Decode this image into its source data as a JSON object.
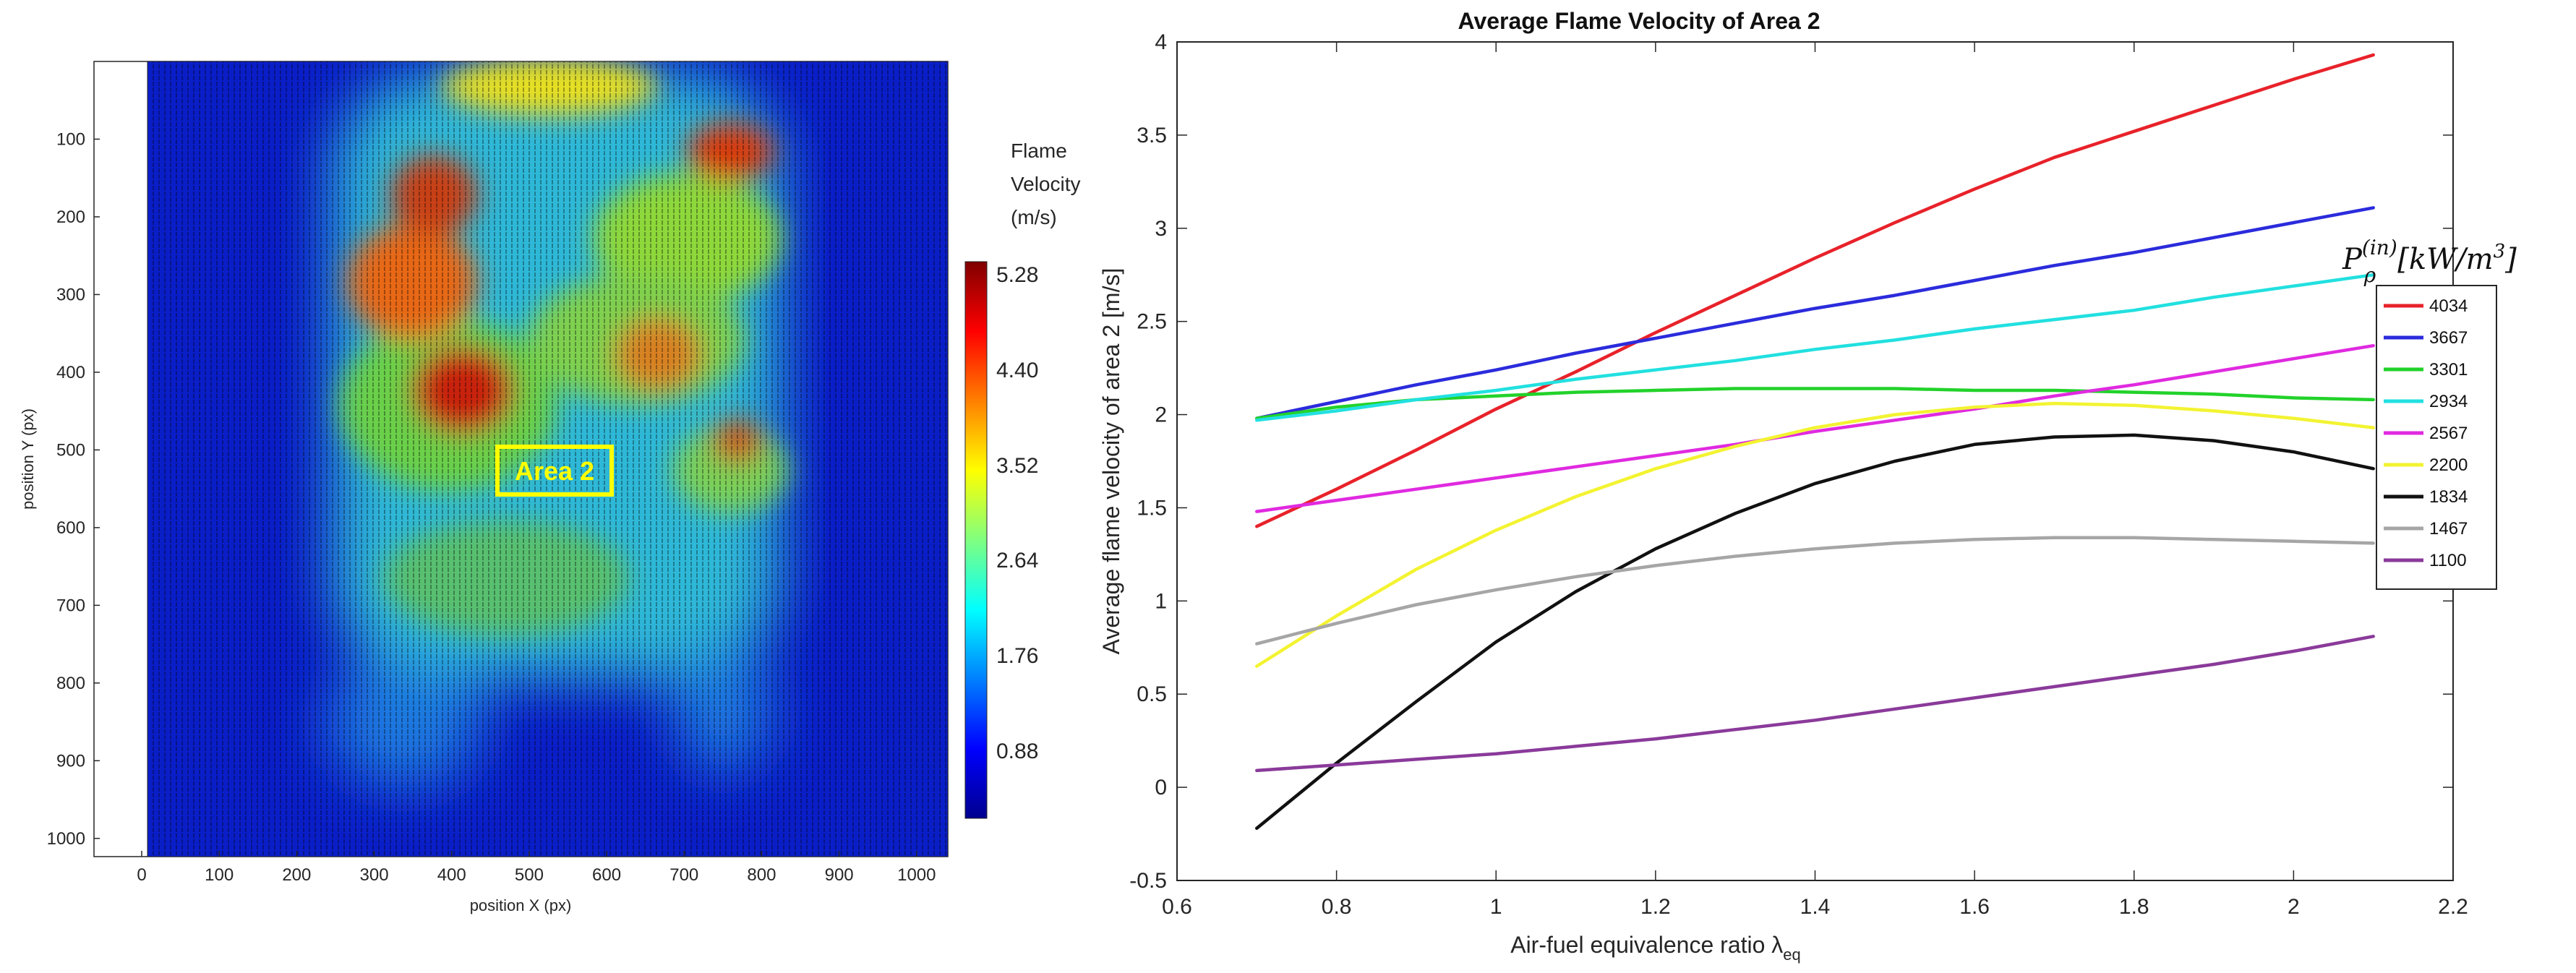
{
  "left_plot": {
    "xlabel": "position X (px)",
    "ylabel": "position Y (px)",
    "xticks": [
      "0",
      "100",
      "200",
      "300",
      "400",
      "500",
      "600",
      "700",
      "800",
      "900",
      "1000"
    ],
    "yticks": [
      "100",
      "200",
      "300",
      "400",
      "500",
      "600",
      "700",
      "800",
      "900",
      "1000"
    ],
    "area_label": "Area 2",
    "colorbar": {
      "title_lines": [
        "Flame",
        "Velocity",
        "(m/s)"
      ],
      "ticks": [
        "5.28",
        "4.40",
        "3.52",
        "2.64",
        "1.76",
        "0.88"
      ]
    }
  },
  "chart_data": {
    "type": "line",
    "title": "Average Flame Velocity of Area 2",
    "xlabel": "Air-fuel equivalence ratio λ",
    "xlabel_sub": "eq",
    "ylabel": "Average flame velocity of area 2 [m/s]",
    "xlim": [
      0.6,
      2.2
    ],
    "ylim": [
      -0.5,
      4
    ],
    "xticks": [
      "0.6",
      "0.8",
      "1",
      "1.2",
      "1.4",
      "1.6",
      "1.8",
      "2",
      "2.2"
    ],
    "yticks": [
      "-0.5",
      "0",
      "0.5",
      "1",
      "1.5",
      "2",
      "2.5",
      "3",
      "3.5",
      "4"
    ],
    "legend_title": {
      "base": "P",
      "sub": "ρ",
      "sup": "(in)",
      "unit": "[kW/m",
      "unit_sup": "3",
      "unit_end": "]"
    },
    "legend_position": "right",
    "x": [
      0.7,
      0.8,
      0.9,
      1.0,
      1.1,
      1.2,
      1.3,
      1.4,
      1.5,
      1.6,
      1.7,
      1.8,
      1.9,
      2.0,
      2.1
    ],
    "series": [
      {
        "name": "4034",
        "color": "#e8222a",
        "values": [
          1.4,
          1.6,
          1.81,
          2.03,
          2.23,
          2.44,
          2.64,
          2.84,
          3.03,
          3.21,
          3.38,
          3.52,
          3.66,
          3.8,
          3.93
        ]
      },
      {
        "name": "3667",
        "color": "#2b2bdc",
        "values": [
          1.98,
          2.07,
          2.16,
          2.24,
          2.33,
          2.41,
          2.49,
          2.57,
          2.64,
          2.72,
          2.8,
          2.87,
          2.95,
          3.03,
          3.11
        ]
      },
      {
        "name": "3301",
        "color": "#22d22a",
        "values": [
          1.98,
          2.04,
          2.08,
          2.1,
          2.12,
          2.13,
          2.14,
          2.14,
          2.14,
          2.13,
          2.13,
          2.12,
          2.11,
          2.09,
          2.08
        ]
      },
      {
        "name": "2934",
        "color": "#22e0e0",
        "values": [
          1.97,
          2.02,
          2.08,
          2.13,
          2.19,
          2.24,
          2.29,
          2.35,
          2.4,
          2.46,
          2.51,
          2.56,
          2.63,
          2.69,
          2.75
        ]
      },
      {
        "name": "2567",
        "color": "#e02ae0",
        "values": [
          1.48,
          1.54,
          1.6,
          1.66,
          1.72,
          1.78,
          1.84,
          1.91,
          1.97,
          2.03,
          2.1,
          2.16,
          2.23,
          2.3,
          2.37
        ]
      },
      {
        "name": "2200",
        "color": "#f3f332",
        "values": [
          0.65,
          0.92,
          1.17,
          1.38,
          1.56,
          1.71,
          1.83,
          1.93,
          2.0,
          2.04,
          2.06,
          2.05,
          2.02,
          1.98,
          1.93
        ]
      },
      {
        "name": "1834",
        "color": "#111111",
        "values": [
          -0.22,
          0.13,
          0.46,
          0.78,
          1.05,
          1.28,
          1.47,
          1.63,
          1.75,
          1.84,
          1.88,
          1.89,
          1.86,
          1.8,
          1.71
        ]
      },
      {
        "name": "1467",
        "color": "#a6a6a6",
        "values": [
          0.77,
          0.88,
          0.98,
          1.06,
          1.13,
          1.19,
          1.24,
          1.28,
          1.31,
          1.33,
          1.34,
          1.34,
          1.33,
          1.32,
          1.31
        ]
      },
      {
        "name": "1100",
        "color": "#8a3a9a",
        "values": [
          0.09,
          0.12,
          0.15,
          0.18,
          0.22,
          0.26,
          0.31,
          0.36,
          0.42,
          0.48,
          0.54,
          0.6,
          0.66,
          0.73,
          0.81
        ]
      }
    ]
  }
}
